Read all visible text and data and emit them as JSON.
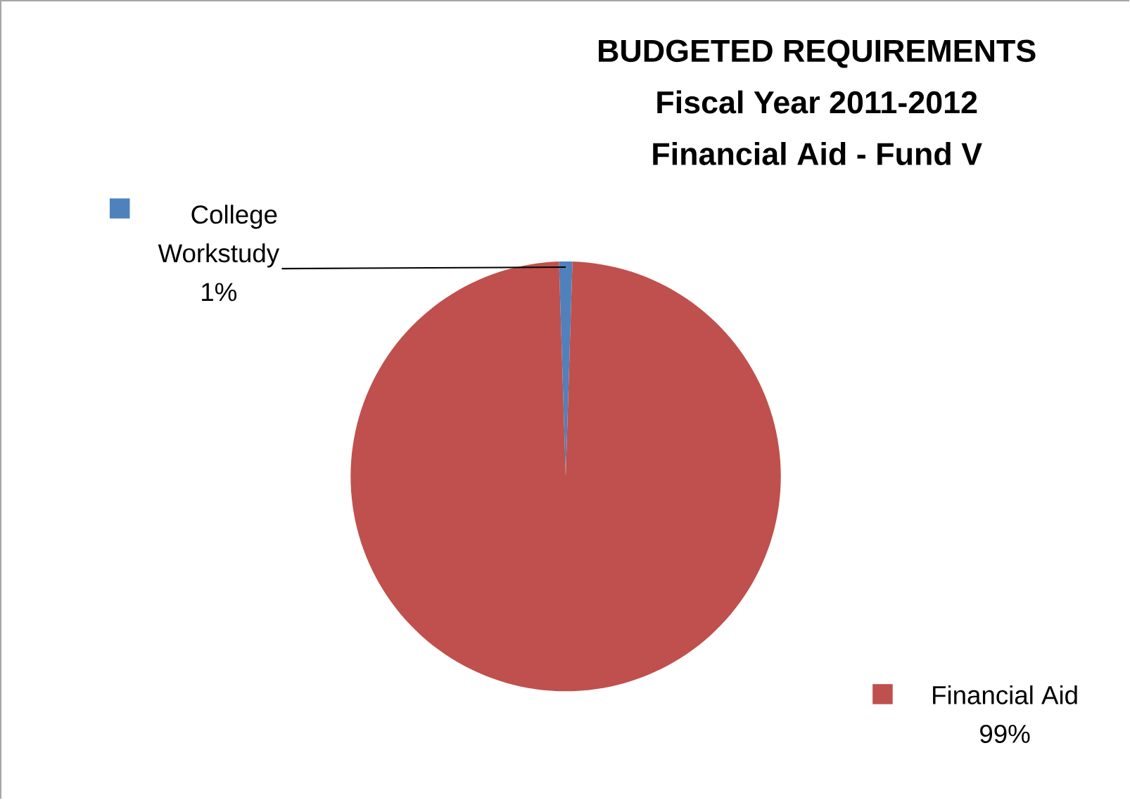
{
  "chart_data": {
    "type": "pie",
    "title": "BUDGETED REQUIREMENTS",
    "subtitle": "Fiscal Year 2011-2012 Financial Aid - Fund V",
    "categories": [
      "College Workstudy",
      "Financial Aid"
    ],
    "values": [
      1,
      99
    ],
    "value_labels": [
      "1%",
      "99%"
    ],
    "colors": [
      "#4f81bd",
      "#c0504d"
    ],
    "legend": "top right"
  }
}
